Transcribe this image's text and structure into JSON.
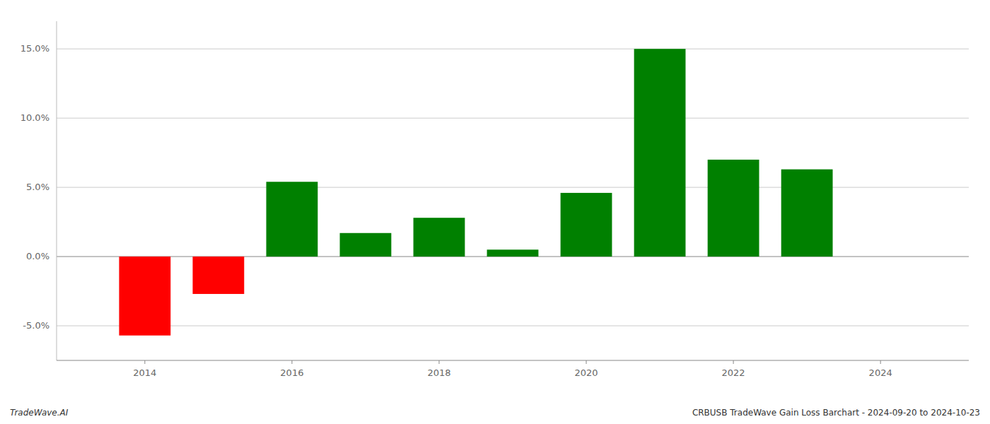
{
  "chart_data": {
    "type": "bar",
    "x": [
      2014,
      2015,
      2016,
      2017,
      2018,
      2019,
      2020,
      2021,
      2022,
      2023
    ],
    "values": [
      -5.7,
      -2.7,
      5.4,
      1.7,
      2.8,
      0.5,
      4.6,
      15.0,
      7.0,
      6.3
    ],
    "colors": [
      "#ff0000",
      "#ff0000",
      "#008000",
      "#008000",
      "#008000",
      "#008000",
      "#008000",
      "#008000",
      "#008000",
      "#008000"
    ],
    "xlim": [
      2012.8,
      2025.2
    ],
    "ylim": [
      -7.5,
      17.0
    ],
    "xticks": [
      2014,
      2016,
      2018,
      2020,
      2022,
      2024
    ],
    "yticks": [
      {
        "value": -5.0,
        "label": "-5.0%"
      },
      {
        "value": 0.0,
        "label": "0.0%"
      },
      {
        "value": 5.0,
        "label": "5.0%"
      },
      {
        "value": 10.0,
        "label": "10.0%"
      },
      {
        "value": 15.0,
        "label": "15.0%"
      }
    ],
    "grid": true,
    "annotations": [
      "TradeWave.AI",
      "CRBUSB TradeWave Gain Loss Barchart - 2024-09-20 to 2024-10-23"
    ]
  }
}
